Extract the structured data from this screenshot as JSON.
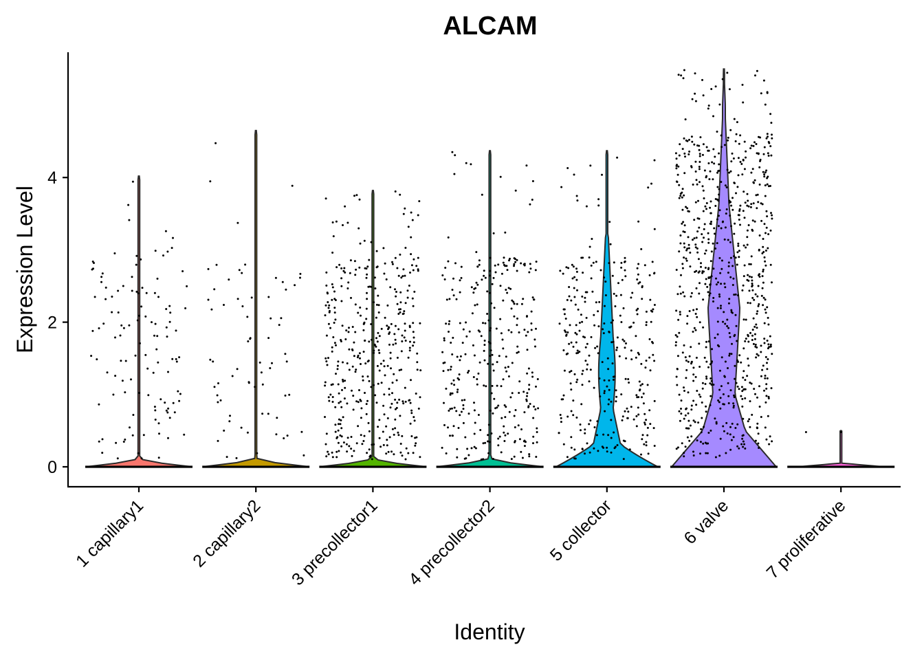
{
  "chart_data": {
    "type": "violin",
    "title": "ALCAM",
    "xlabel": "Identity",
    "ylabel": "Expression Level",
    "ylim": [
      -0.28,
      5.8
    ],
    "yticks": [
      0,
      2,
      4
    ],
    "grid": false,
    "legend": "none",
    "categories": [
      {
        "label": "1 capillary1",
        "color": "#F8766D",
        "max": 4.02,
        "shape": "flat",
        "scatter_max": 3.0,
        "n_points": 120
      },
      {
        "label": "2 capillary2",
        "color": "#C49A00",
        "max": 4.65,
        "shape": "flat",
        "scatter_max": 2.9,
        "n_points": 70
      },
      {
        "label": "3 precollector1",
        "color": "#53B400",
        "max": 3.82,
        "shape": "flat",
        "scatter_max": 2.9,
        "n_points": 420
      },
      {
        "label": "4 precollector2",
        "color": "#00C094",
        "max": 4.37,
        "shape": "flat",
        "scatter_max": 2.9,
        "n_points": 330
      },
      {
        "label": "5 collector",
        "color": "#00B6EB",
        "max": 4.37,
        "shape": "collector",
        "scatter_max": 2.9,
        "n_points": 330
      },
      {
        "label": "6 valve",
        "color": "#A58AFF",
        "max": 5.5,
        "shape": "valve",
        "scatter_max": 4.6,
        "n_points": 780
      },
      {
        "label": "7 proliferative",
        "color": "#FB61D7",
        "max": 0.5,
        "shape": "tiny",
        "scatter_max": 0.5,
        "n_points": 2
      }
    ]
  }
}
